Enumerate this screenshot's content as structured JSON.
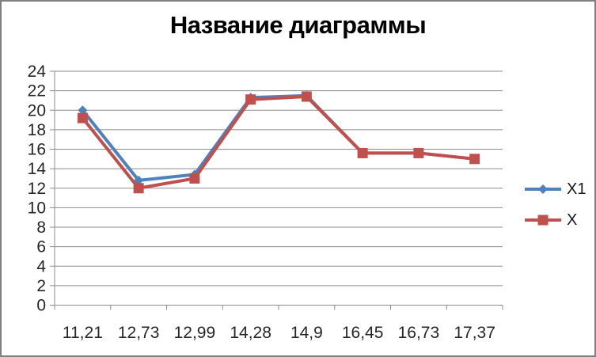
{
  "chart_data": {
    "type": "line",
    "title": "Название диаграммы",
    "categories": [
      "11,21",
      "12,73",
      "12,99",
      "14,28",
      "14,9",
      "16,45",
      "16,73",
      "17,37"
    ],
    "series": [
      {
        "name": "X1",
        "color": "#4F81BD",
        "marker": "diamond",
        "values": [
          20.0,
          12.8,
          13.4,
          21.3,
          21.5,
          15.6,
          15.6,
          15.0
        ]
      },
      {
        "name": "X",
        "color": "#C0504D",
        "marker": "square",
        "values": [
          19.2,
          12.0,
          13.0,
          21.1,
          21.4,
          15.6,
          15.6,
          15.0
        ]
      }
    ],
    "y_axis": {
      "min": 0,
      "max": 24,
      "step": 2,
      "ticks": [
        "0",
        "2",
        "4",
        "6",
        "8",
        "10",
        "12",
        "14",
        "16",
        "18",
        "20",
        "22",
        "24"
      ]
    },
    "x_axis": {
      "ticks_between_categories": true
    },
    "legend_position": "right",
    "grid": true,
    "colors": {
      "gridline": "#8C8C8C",
      "axis": "#8C8C8C",
      "text": "#262626",
      "border": "#7F7F7F",
      "background": "#FFFFFF",
      "title": "#000000"
    }
  }
}
